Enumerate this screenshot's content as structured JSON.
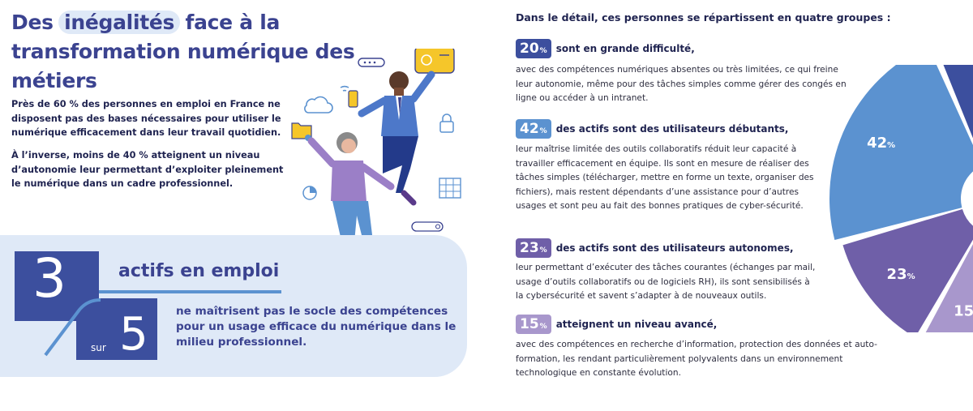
{
  "title": {
    "part1": "Des ",
    "highlight": "inégalités",
    "part2": " face à la transformation numérique des métiers"
  },
  "intro": {
    "p1": "Près de 60 % des personnes en emploi en France ne disposent pas des bases nécessaires pour utiliser le numérique efficacement dans leur travail quotidien.",
    "p2": "À l’inverse, moins de 40 % atteignent un niveau d’autonomie leur permettant d’exploiter pleinement le numérique dans un cadre professionnel."
  },
  "stat": {
    "numerator": "3",
    "denominator": "5",
    "sur": "sur",
    "headline": "actifs en emploi",
    "description": "ne maîtrisent pas le socle des compétences pour un usage efficace du numérique dans le milieu professionnel."
  },
  "detail": {
    "heading": "Dans le détail, ces personnes se répartissent en quatre groupes :",
    "percent_sign": "%",
    "groups": [
      {
        "value": "20",
        "color": "#3c4f9e",
        "title": "sont en grande difficulté,",
        "text": "avec des compétences numériques absentes ou très limitées, ce qui freine leur autonomie, même pour des tâches simples comme gérer des congés en ligne ou accéder à un intranet."
      },
      {
        "value": "42",
        "color": "#5b92d0",
        "title": "des actifs sont des utilisateurs débutants,",
        "text": "leur maîtrise limitée des outils collaboratifs réduit leur capacité à travailler efficacement en équipe. Ils sont en mesure de réaliser des tâches simples (télécharger, mettre en forme un texte, organiser des fichiers), mais restent dépendants d’une assistance pour d’autres usages et sont peu au fait des bonnes pratiques de cyber-sécurité."
      },
      {
        "value": "23",
        "color": "#6f5fa8",
        "title": "des actifs sont des utilisateurs autonomes,",
        "text": "leur permettant d’exécuter des tâches courantes (échanges par mail, usage d’outils collaboratifs ou de logiciels RH), ils sont sensibilisés à la cybersécurité et savent s’adapter à de nouveaux outils."
      },
      {
        "value": "15",
        "color": "#a897cc",
        "title": "atteignent un niveau avancé,",
        "text": "avec des compétences en recherche d’information, protection des données et auto-formation, les rendant particulièrement polyvalents dans un environnement technologique en constante évolution."
      }
    ]
  },
  "illustration": {
    "icons": [
      "cloud-icon",
      "wifi-icon",
      "lock-icon",
      "folder-icon",
      "calendar-grid-icon",
      "pie-chart-icon",
      "search-bar-icon",
      "browser-window-icon"
    ]
  }
}
